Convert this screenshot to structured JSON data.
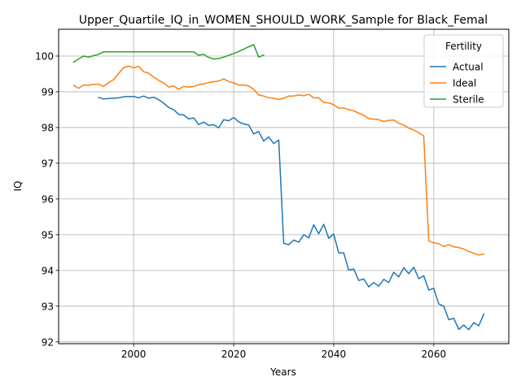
{
  "chart_data": {
    "type": "line",
    "title": "Upper_Quartile_IQ_in_WOMEN_SHOULD_WORK_Sample for Black_Femal",
    "xlabel": "Years",
    "ylabel": "IQ",
    "xlim": [
      1985,
      2075
    ],
    "ylim": [
      91.95,
      100.75
    ],
    "grid": true,
    "x_ticks": [
      2000,
      2020,
      2040,
      2060
    ],
    "y_ticks": [
      92,
      93,
      94,
      95,
      96,
      97,
      98,
      99,
      100
    ],
    "legend": {
      "title": "Fertility",
      "position": "top-right"
    },
    "series": [
      {
        "name": "Actual",
        "color": "#1f77b4",
        "x": [
          1993,
          1994,
          1995,
          1996,
          1997,
          1998,
          1999,
          2000,
          2001,
          2002,
          2003,
          2004,
          2005,
          2006,
          2007,
          2008,
          2009,
          2010,
          2011,
          2012,
          2013,
          2014,
          2015,
          2016,
          2017,
          2018,
          2019,
          2020,
          2021,
          2022,
          2023,
          2024,
          2025,
          2026,
          2027,
          2028,
          2029,
          2030,
          2031,
          2032,
          2033,
          2034,
          2035,
          2036,
          2037,
          2038,
          2039,
          2040,
          2041,
          2042,
          2043,
          2044,
          2045,
          2046,
          2047,
          2048,
          2049,
          2050,
          2051,
          2052,
          2053,
          2054,
          2055,
          2056,
          2057,
          2058,
          2059,
          2060,
          2061,
          2062,
          2063,
          2064,
          2065,
          2066,
          2067,
          2068,
          2069,
          2070
        ],
        "values": [
          98.84,
          98.8,
          98.81,
          98.82,
          98.83,
          98.86,
          98.87,
          98.87,
          98.83,
          98.88,
          98.82,
          98.85,
          98.78,
          98.68,
          98.56,
          98.5,
          98.37,
          98.35,
          98.24,
          98.27,
          98.08,
          98.15,
          98.06,
          98.08,
          97.99,
          98.22,
          98.19,
          98.28,
          98.16,
          98.1,
          98.07,
          97.82,
          97.89,
          97.62,
          97.74,
          97.55,
          97.65,
          94.76,
          94.72,
          94.85,
          94.79,
          95.0,
          94.91,
          95.28,
          95.03,
          95.29,
          94.9,
          95.02,
          94.49,
          94.49,
          94.01,
          94.04,
          93.72,
          93.76,
          93.54,
          93.66,
          93.56,
          93.75,
          93.66,
          93.95,
          93.82,
          94.08,
          93.91,
          94.09,
          93.77,
          93.85,
          93.45,
          93.5,
          93.06,
          93.0,
          92.62,
          92.66,
          92.35,
          92.47,
          92.34,
          92.54,
          92.45,
          92.78
        ]
      },
      {
        "name": "Ideal",
        "color": "#ff7f0e",
        "x": [
          1988,
          1989,
          1990,
          1991,
          1992,
          1993,
          1994,
          1995,
          1996,
          1997,
          1998,
          1999,
          2000,
          2001,
          2002,
          2003,
          2004,
          2005,
          2006,
          2007,
          2008,
          2009,
          2010,
          2011,
          2012,
          2013,
          2014,
          2015,
          2016,
          2017,
          2018,
          2019,
          2020,
          2021,
          2022,
          2023,
          2024,
          2025,
          2026,
          2027,
          2028,
          2029,
          2030,
          2031,
          2032,
          2033,
          2034,
          2035,
          2036,
          2037,
          2038,
          2039,
          2040,
          2041,
          2042,
          2043,
          2044,
          2045,
          2046,
          2047,
          2048,
          2049,
          2050,
          2051,
          2052,
          2053,
          2054,
          2055,
          2056,
          2057,
          2058,
          2059,
          2060,
          2061,
          2062,
          2063,
          2064,
          2065,
          2066,
          2067,
          2068,
          2069,
          2070
        ],
        "values": [
          99.18,
          99.1,
          99.19,
          99.18,
          99.21,
          99.21,
          99.15,
          99.26,
          99.34,
          99.51,
          99.68,
          99.72,
          99.67,
          99.71,
          99.56,
          99.52,
          99.41,
          99.32,
          99.25,
          99.13,
          99.16,
          99.07,
          99.15,
          99.13,
          99.15,
          99.2,
          99.22,
          99.26,
          99.28,
          99.3,
          99.36,
          99.29,
          99.25,
          99.19,
          99.19,
          99.16,
          99.07,
          98.91,
          98.88,
          98.83,
          98.82,
          98.78,
          98.82,
          98.88,
          98.88,
          98.91,
          98.89,
          98.93,
          98.83,
          98.83,
          98.7,
          98.69,
          98.64,
          98.54,
          98.55,
          98.5,
          98.47,
          98.4,
          98.34,
          98.25,
          98.23,
          98.22,
          98.17,
          98.2,
          98.21,
          98.12,
          98.07,
          97.98,
          97.93,
          97.85,
          97.77,
          94.83,
          94.77,
          94.75,
          94.67,
          94.72,
          94.66,
          94.64,
          94.6,
          94.53,
          94.48,
          94.43,
          94.46
        ]
      },
      {
        "name": "Sterile",
        "color": "#2ca02c",
        "x": [
          1988,
          1989,
          1990,
          1991,
          1992,
          1993,
          1994,
          1995,
          1996,
          1997,
          1998,
          1999,
          2000,
          2001,
          2002,
          2003,
          2004,
          2005,
          2006,
          2007,
          2008,
          2009,
          2010,
          2011,
          2012,
          2013,
          2014,
          2015,
          2016,
          2017,
          2018,
          2019,
          2020,
          2021,
          2022,
          2023,
          2024,
          2025,
          2026
        ],
        "values": [
          99.83,
          99.92,
          100.0,
          99.97,
          100.01,
          100.05,
          100.12,
          100.12,
          100.12,
          100.12,
          100.12,
          100.12,
          100.12,
          100.12,
          100.12,
          100.12,
          100.12,
          100.12,
          100.12,
          100.12,
          100.12,
          100.12,
          100.12,
          100.12,
          100.12,
          100.02,
          100.05,
          99.96,
          99.92,
          99.93,
          99.97,
          100.02,
          100.07,
          100.13,
          100.19,
          100.26,
          100.32,
          99.97,
          100.03
        ]
      }
    ]
  }
}
